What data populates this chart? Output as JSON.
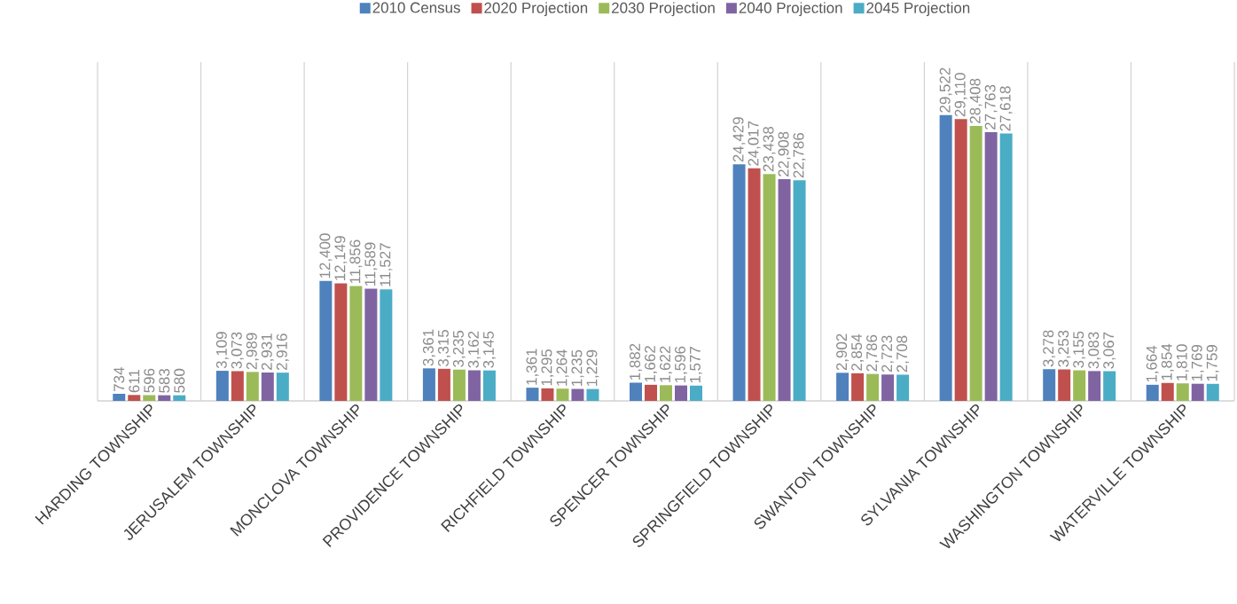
{
  "chart_data": {
    "type": "bar",
    "categories": [
      "HARDING TOWNSHIP",
      "JERUSALEM TOWNSHIP",
      "MONCLOVA TOWNSHIP",
      "PROVIDENCE TOWNSHIP",
      "RICHFIELD TOWNSHIP",
      "SPENCER TOWNSHIP",
      "SPRINGFIELD TOWNSHIP",
      "SWANTON TOWNSHIP",
      "SYLVANIA TOWNSHIP",
      "WASHINGTON TOWNSHIP",
      "WATERVILLE TOWNSHIP"
    ],
    "series": [
      {
        "name": "2010 Census",
        "color": "#4f81bd",
        "values": [
          734,
          3109,
          12400,
          3361,
          1361,
          1882,
          24429,
          2902,
          29522,
          3278,
          1664
        ],
        "value_labels": [
          "734",
          "3,109",
          "12,400",
          "3,361",
          "1,361",
          "1,882",
          "24,429",
          "2,902",
          "29,522",
          "3,278",
          "1,664"
        ]
      },
      {
        "name": "2020 Projection",
        "color": "#c0504d",
        "values": [
          611,
          3073,
          12149,
          3315,
          1295,
          1662,
          24017,
          2854,
          29110,
          3253,
          1854
        ],
        "value_labels": [
          "611",
          "3,073",
          "12,149",
          "3,315",
          "1,295",
          "1,662",
          "24,017",
          "2,854",
          "29,110",
          "3,253",
          "1,854"
        ]
      },
      {
        "name": "2030 Projection",
        "color": "#9bbb59",
        "values": [
          596,
          2989,
          11856,
          3235,
          1264,
          1622,
          23438,
          2786,
          28408,
          3155,
          1810
        ],
        "value_labels": [
          "596",
          "2,989",
          "11,856",
          "3,235",
          "1,264",
          "1,622",
          "23,438",
          "2,786",
          "28,408",
          "3,155",
          "1,810"
        ]
      },
      {
        "name": "2040 Projection",
        "color": "#8064a2",
        "values": [
          583,
          2931,
          11589,
          3162,
          1235,
          1596,
          22908,
          2723,
          27763,
          3083,
          1769
        ],
        "value_labels": [
          "583",
          "2,931",
          "11,589",
          "3,162",
          "1,235",
          "1,596",
          "22,908",
          "2,723",
          "27,763",
          "3,083",
          "1,769"
        ]
      },
      {
        "name": "2045 Projection",
        "color": "#4bacc6",
        "values": [
          580,
          2916,
          11527,
          3145,
          1229,
          1577,
          22786,
          2708,
          27618,
          3067,
          1759
        ],
        "value_labels": [
          "580",
          "2,916",
          "11,527",
          "3,145",
          "1,229",
          "1,577",
          "22,786",
          "2,708",
          "27,618",
          "3,067",
          "1,759"
        ]
      }
    ],
    "ylim": [
      0,
      35000
    ],
    "grid": "x",
    "legend": "top"
  }
}
